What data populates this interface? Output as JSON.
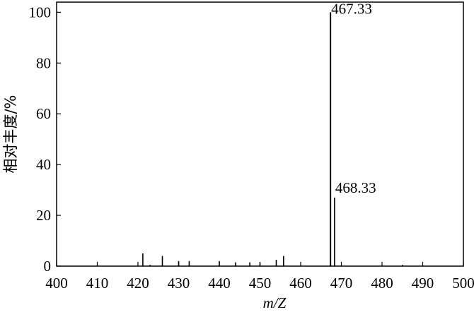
{
  "chart_data": {
    "type": "bar",
    "title": "",
    "xlabel": "m/Z",
    "ylabel": "相对丰度/%",
    "xlim": [
      400,
      500
    ],
    "ylim": [
      0,
      104
    ],
    "xticks": [
      400,
      410,
      420,
      430,
      440,
      450,
      460,
      470,
      480,
      490,
      500
    ],
    "yticks": [
      0,
      20,
      40,
      60,
      80,
      100
    ],
    "grid": false,
    "peaks": [
      {
        "x": 421.2,
        "y": 5
      },
      {
        "x": 423.0,
        "y": 0.5
      },
      {
        "x": 426.0,
        "y": 4
      },
      {
        "x": 430.0,
        "y": 2
      },
      {
        "x": 432.6,
        "y": 2
      },
      {
        "x": 440.0,
        "y": 2
      },
      {
        "x": 444.0,
        "y": 1.5
      },
      {
        "x": 447.5,
        "y": 1.5
      },
      {
        "x": 450.0,
        "y": 1.5
      },
      {
        "x": 454.0,
        "y": 2.5
      },
      {
        "x": 455.8,
        "y": 4
      },
      {
        "x": 467.33,
        "y": 100
      },
      {
        "x": 468.33,
        "y": 27
      },
      {
        "x": 485.0,
        "y": 0.5
      }
    ],
    "annotations": [
      {
        "x": 467.33,
        "y": 100,
        "text": "467.33"
      },
      {
        "x": 468.33,
        "y": 27,
        "text": "468.33"
      }
    ]
  }
}
